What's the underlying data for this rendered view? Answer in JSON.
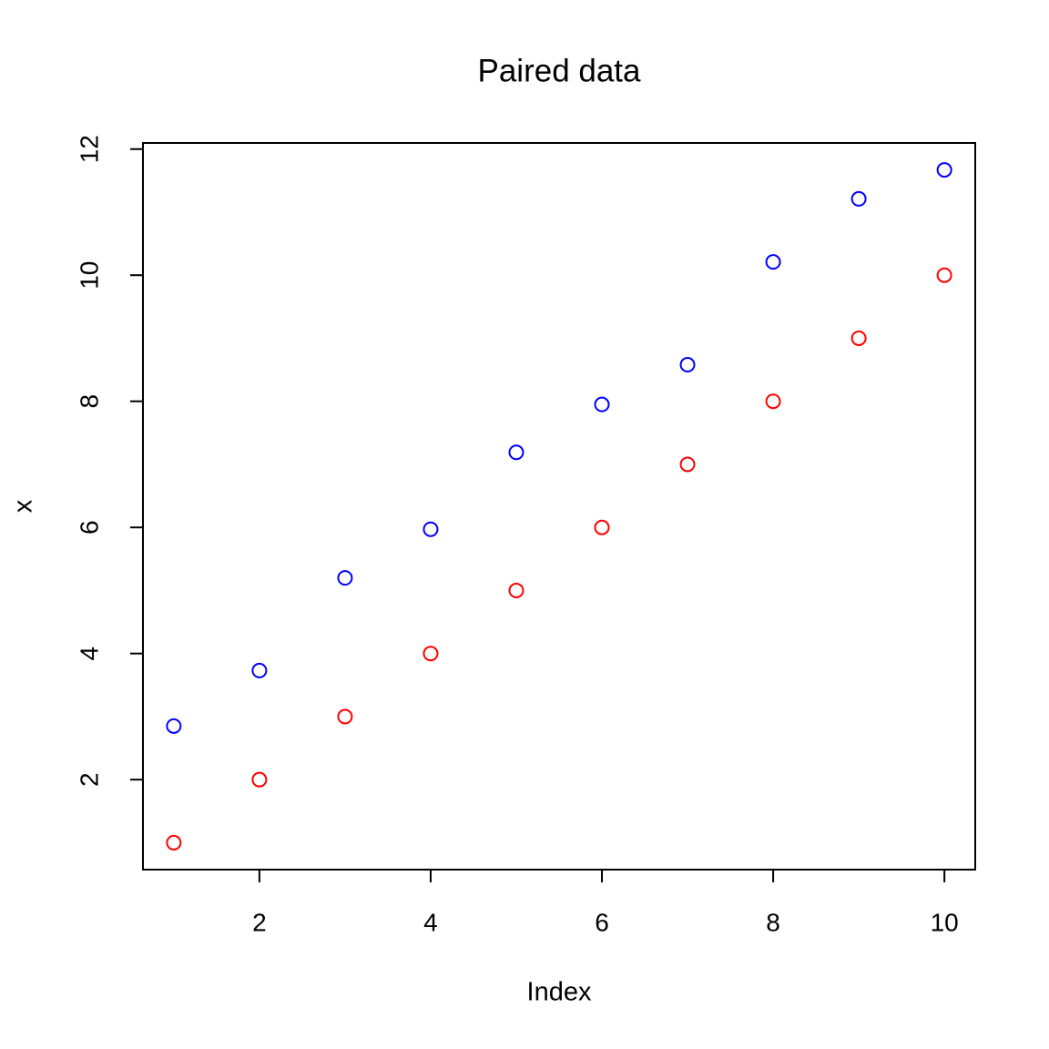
{
  "chart_data": {
    "type": "scatter",
    "title": "Paired data",
    "x_label": "Index",
    "y_label": "x",
    "x": [
      1,
      2,
      3,
      4,
      5,
      6,
      7,
      8,
      9,
      10
    ],
    "series": [
      {
        "color": "#ff0000",
        "values": [
          1,
          2,
          3,
          4,
          5,
          6,
          7,
          8,
          9,
          10
        ]
      },
      {
        "color": "#0000ff",
        "values": [
          2.85,
          3.73,
          5.2,
          5.97,
          7.19,
          7.95,
          8.58,
          10.21,
          11.21,
          11.67
        ]
      }
    ],
    "xlim": [
      0.64,
      10.36
    ],
    "ylim": [
      0.573,
      12.097
    ],
    "xticks": [
      2,
      4,
      6,
      8,
      10
    ],
    "yticks": [
      2,
      4,
      6,
      8,
      10,
      12
    ],
    "grid": false
  }
}
